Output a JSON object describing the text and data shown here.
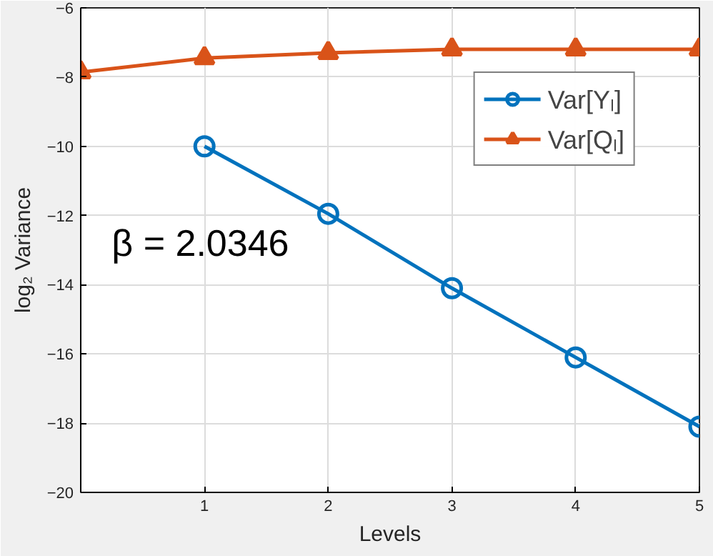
{
  "chart_data": {
    "type": "line",
    "xlabel": "Levels",
    "ylabel": "log₂ Variance",
    "xlim": [
      0,
      5
    ],
    "xticks": [
      1,
      2,
      3,
      4,
      5
    ],
    "ylim": [
      -20,
      -6
    ],
    "yticks": [
      -20,
      -18,
      -16,
      -14,
      -12,
      -10,
      -8,
      -6
    ],
    "grid": true,
    "legend": "top right",
    "line_style": "solid",
    "series": [
      {
        "name": "Var[Yₗ]",
        "color": "#0072bd",
        "marker": "circle",
        "x": [
          1,
          2,
          3,
          4,
          5
        ],
        "values": [
          -10,
          -11.95,
          -14.1,
          -16.1,
          -18.1
        ]
      },
      {
        "name": "Var[Qₗ]",
        "color": "#d95319",
        "marker": "triangle",
        "x": [
          0,
          1,
          2,
          3,
          4,
          5
        ],
        "values": [
          -7.86,
          -7.45,
          -7.3,
          -7.2,
          -7.2,
          -7.2
        ]
      }
    ],
    "annotations": [
      "β = 2.0346"
    ]
  }
}
